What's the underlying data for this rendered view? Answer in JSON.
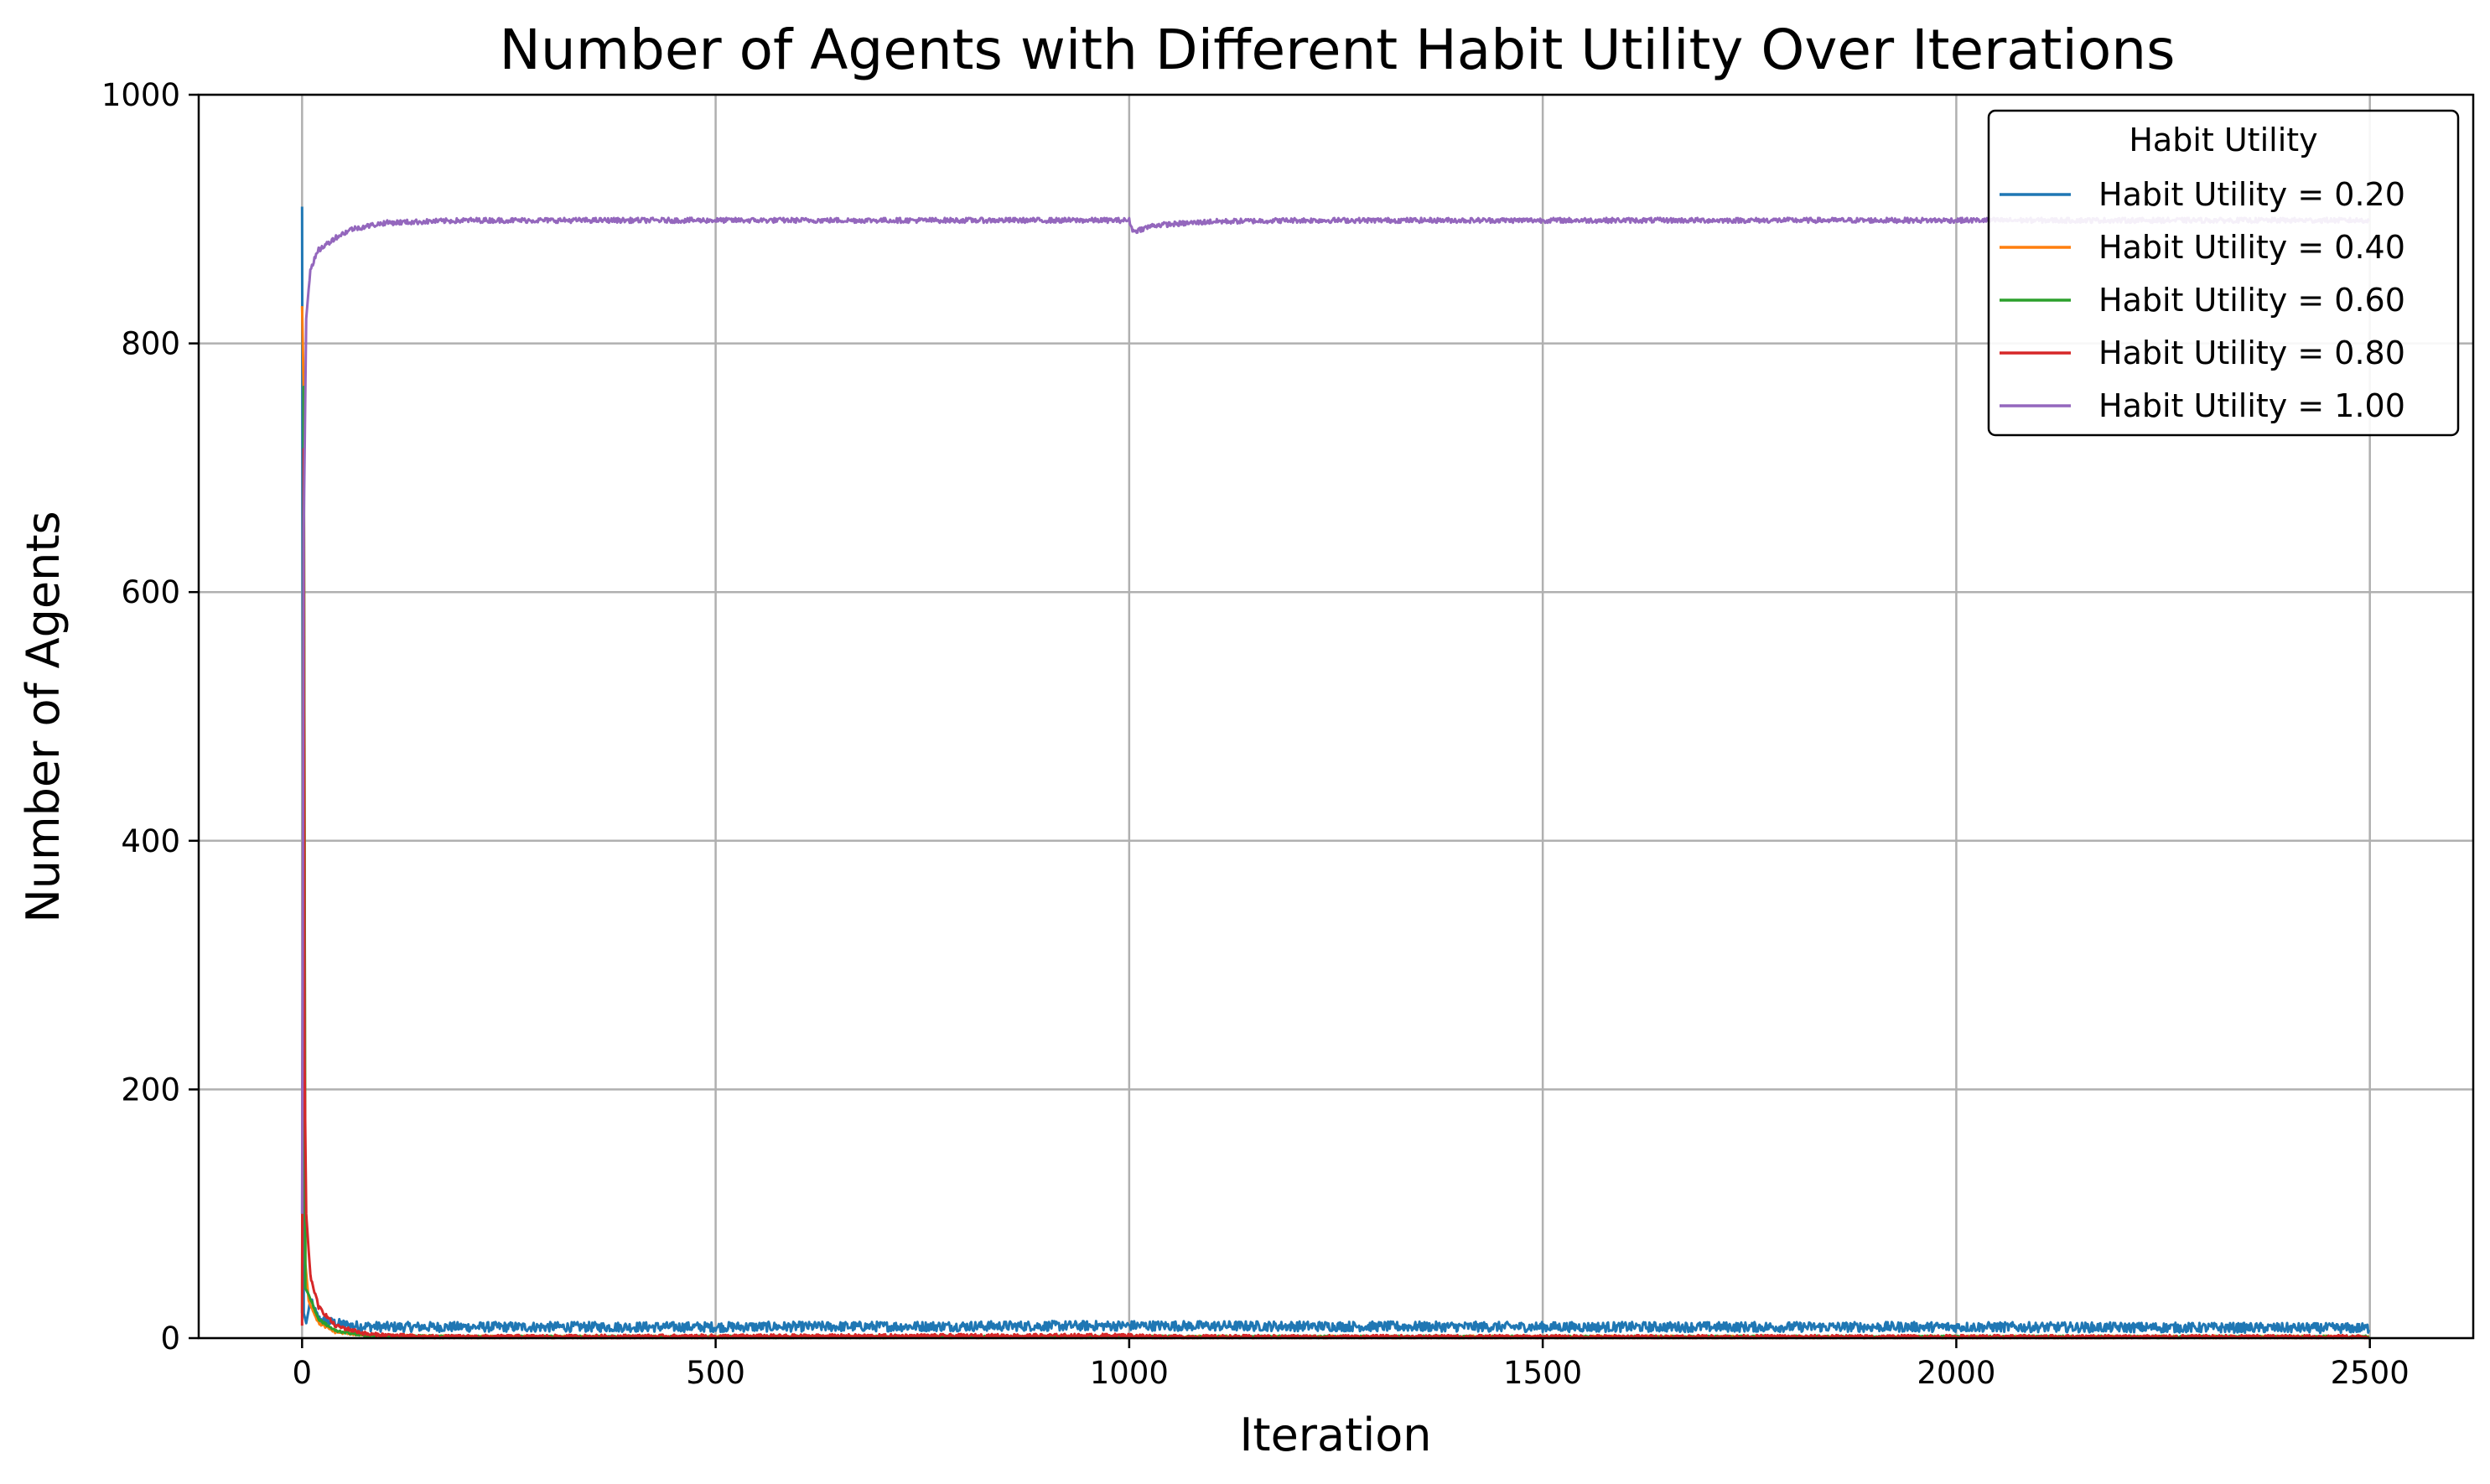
{
  "chart_data": {
    "type": "line",
    "title": "Number of Agents with Different Habit Utility Over Iterations",
    "xlabel": "Iteration",
    "ylabel": "Number of Agents",
    "xlim": [
      -125,
      2625
    ],
    "ylim": [
      0,
      1000
    ],
    "xticks": [
      0,
      500,
      1000,
      1500,
      2000,
      2500
    ],
    "yticks": [
      0,
      200,
      400,
      600,
      800,
      1000
    ],
    "grid": true,
    "legend": {
      "title": "Habit Utility",
      "placement": "top-right"
    },
    "series": [
      {
        "name": "Habit Utility = 0.20",
        "color": "#1f77b4",
        "points": [
          [
            0,
            910
          ],
          [
            2,
            20
          ],
          [
            5,
            12
          ],
          [
            10,
            30
          ],
          [
            20,
            15
          ],
          [
            40,
            12
          ],
          [
            60,
            10
          ],
          [
            100,
            9
          ],
          [
            200,
            9
          ],
          [
            500,
            9
          ],
          [
            1000,
            10
          ],
          [
            1500,
            9
          ],
          [
            2000,
            9
          ],
          [
            2499,
            8
          ]
        ],
        "noise": 4
      },
      {
        "name": "Habit Utility = 0.40",
        "color": "#ff7f0e",
        "points": [
          [
            0,
            830
          ],
          [
            2,
            760
          ],
          [
            4,
            60
          ],
          [
            8,
            30
          ],
          [
            20,
            12
          ],
          [
            40,
            5
          ],
          [
            80,
            2
          ],
          [
            200,
            1
          ],
          [
            1000,
            1
          ],
          [
            2499,
            1
          ]
        ],
        "noise": 1
      },
      {
        "name": "Habit Utility = 0.60",
        "color": "#2ca02c",
        "points": [
          [
            0,
            20
          ],
          [
            2,
            765
          ],
          [
            4,
            40
          ],
          [
            8,
            35
          ],
          [
            20,
            15
          ],
          [
            40,
            6
          ],
          [
            80,
            2
          ],
          [
            200,
            1
          ],
          [
            1000,
            1
          ],
          [
            2499,
            1
          ]
        ],
        "noise": 1
      },
      {
        "name": "Habit Utility = 0.80",
        "color": "#d62728",
        "points": [
          [
            0,
            10
          ],
          [
            2,
            715
          ],
          [
            3,
            220
          ],
          [
            5,
            100
          ],
          [
            10,
            50
          ],
          [
            20,
            25
          ],
          [
            40,
            10
          ],
          [
            80,
            3
          ],
          [
            150,
            1
          ],
          [
            1000,
            2
          ],
          [
            1050,
            1
          ],
          [
            2499,
            1
          ]
        ],
        "noise": 1.5
      },
      {
        "name": "Habit Utility = 1.00",
        "color": "#9467bd",
        "points": [
          [
            0,
            100
          ],
          [
            2,
            650
          ],
          [
            5,
            820
          ],
          [
            10,
            860
          ],
          [
            20,
            875
          ],
          [
            40,
            885
          ],
          [
            60,
            892
          ],
          [
            100,
            897
          ],
          [
            200,
            899
          ],
          [
            1000,
            899
          ],
          [
            1005,
            890
          ],
          [
            1030,
            895
          ],
          [
            1100,
            898
          ],
          [
            1200,
            899
          ],
          [
            2499,
            899
          ]
        ],
        "noise": 2
      }
    ]
  }
}
